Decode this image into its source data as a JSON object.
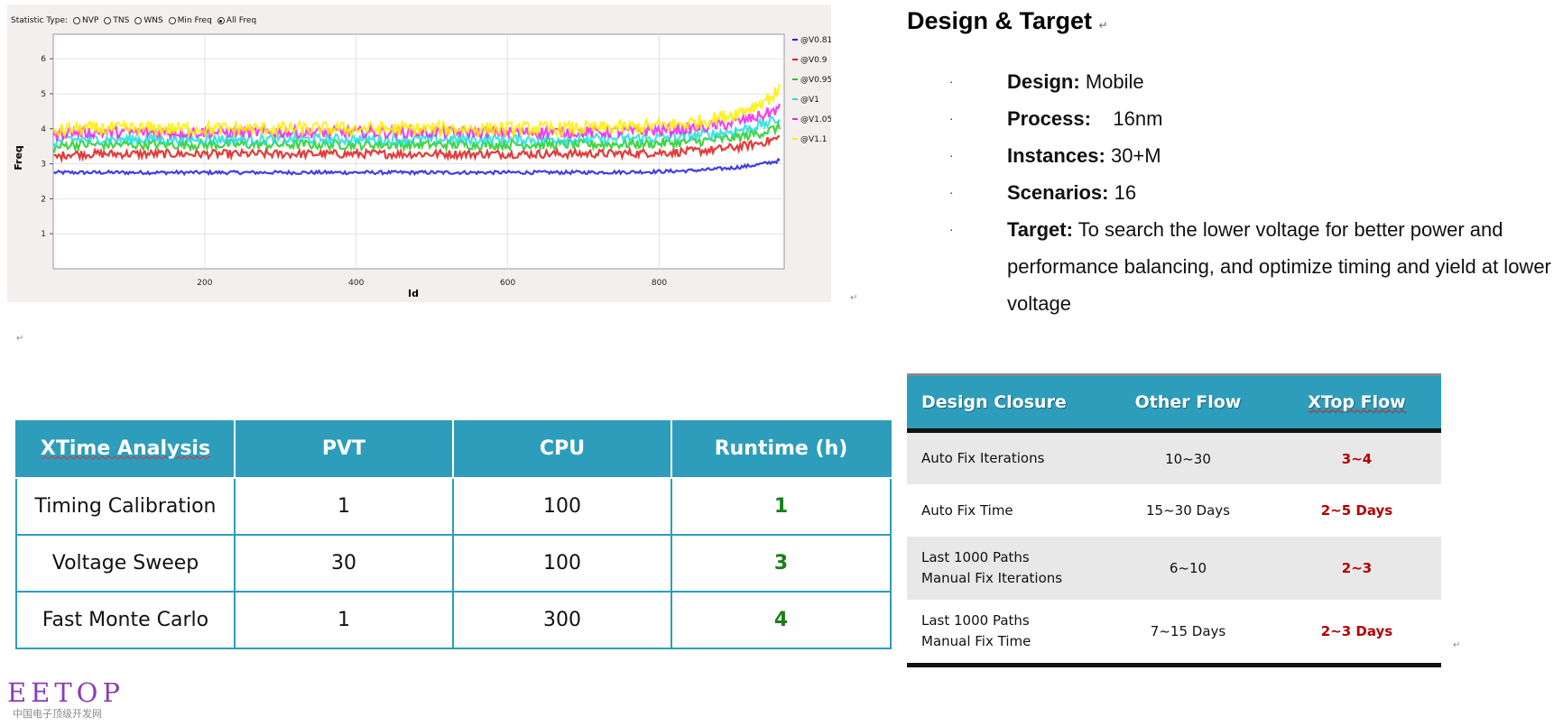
{
  "stat_type": {
    "label": "Statistic Type:",
    "options": [
      "NVP",
      "TNS",
      "WNS",
      "Min Freq",
      "All Freq"
    ],
    "selected": "All Freq"
  },
  "chart_data": {
    "type": "scatter",
    "xlabel": "Id",
    "ylabel": "Freq",
    "xlim": [
      0,
      965
    ],
    "ylim": [
      0,
      6.7
    ],
    "x_ticks": [
      200,
      400,
      600,
      800
    ],
    "y_ticks": [
      1,
      2,
      3,
      4,
      5,
      6
    ],
    "grid": true,
    "legend_position": "right",
    "series": [
      {
        "name": "@V0.81",
        "color": "#1f1fdc",
        "base": 2.75,
        "end": 3.1,
        "spread": 0.05
      },
      {
        "name": "@V0.9",
        "color": "#e01818",
        "base": 3.28,
        "end": 3.75,
        "spread": 0.12
      },
      {
        "name": "@V0.95",
        "color": "#22cc22",
        "base": 3.55,
        "end": 4.05,
        "spread": 0.14
      },
      {
        "name": "@V1",
        "color": "#22dddd",
        "base": 3.7,
        "end": 4.3,
        "spread": 0.15
      },
      {
        "name": "@V1.05",
        "color": "#ee22ee",
        "base": 3.9,
        "end": 4.6,
        "spread": 0.16
      },
      {
        "name": "@V1.1",
        "color": "#ffee00",
        "base": 4.0,
        "end": 5.1,
        "spread": 0.2
      }
    ]
  },
  "design_target": {
    "title": "Design & Target",
    "bullets": [
      {
        "key": "Design:",
        "value": "Mobile"
      },
      {
        "key": "Process:",
        "value": "16nm"
      },
      {
        "key": "Instances:",
        "value": "30+M"
      },
      {
        "key": "Scenarios:",
        "value": "16"
      },
      {
        "key": "Target:",
        "value": "To search the lower voltage for better power and performance balancing, and optimize timing and yield at lower voltage"
      }
    ]
  },
  "xtime_table": {
    "headers": [
      "XTime Analysis",
      "PVT",
      "CPU",
      "Runtime (h)"
    ],
    "rows": [
      [
        "Timing Calibration",
        "1",
        "100",
        "1"
      ],
      [
        "Voltage Sweep",
        "30",
        "100",
        "3"
      ],
      [
        "Fast Monte Carlo",
        "1",
        "300",
        "4"
      ]
    ]
  },
  "flow_table": {
    "headers": [
      "Design Closure",
      "Other Flow",
      "XTop Flow"
    ],
    "rows": [
      {
        "label1": "Auto Fix Iterations",
        "label2": "",
        "other": "10~30",
        "xtop": "3~4"
      },
      {
        "label1": "Auto Fix Time",
        "label2": "",
        "other": "15~30 Days",
        "xtop": "2~5 Days"
      },
      {
        "label1": "Last 1000 Paths",
        "label2": "Manual Fix Iterations",
        "other": "6~10",
        "xtop": "2~3"
      },
      {
        "label1": "Last 1000 Paths",
        "label2": "Manual Fix Time",
        "other": "7~15 Days",
        "xtop": "2~3 Days"
      }
    ]
  },
  "logo": {
    "main": "EETOP",
    "sub": "中国电子顶级开发网"
  },
  "return_mark": "↵"
}
